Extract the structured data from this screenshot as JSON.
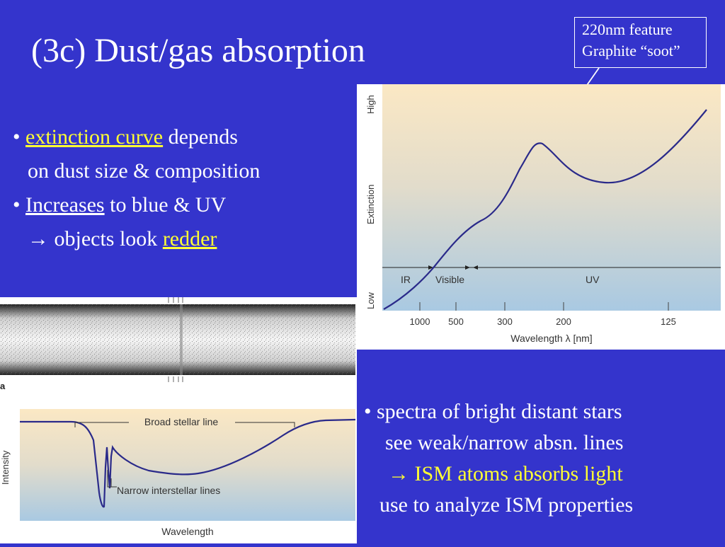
{
  "slide": {
    "title": "(3c)  Dust/gas absorption",
    "callout": {
      "line1": "220nm feature",
      "line2": "Graphite “soot”"
    },
    "bullets_left": {
      "b1_bullet": "•",
      "b1_highlight": "extinction curve",
      "b1_rest": " depends",
      "b1_line2": "on dust size & composition",
      "b2_bullet": "•",
      "b2_underlined": "Increases",
      "b2_rest": " to blue & UV",
      "b3_arrow": "→",
      "b3_text": " objects look ",
      "b3_highlight": "redder"
    },
    "bullets_right": {
      "line1": "• spectra of bright distant stars",
      "line2": "see weak/narrow absn. lines",
      "line3_arrow": "→",
      "line3_text": " ISM atoms absorbs light",
      "line4": "use to analyze ISM properties"
    },
    "colors": {
      "background": "#3434cc",
      "highlight": "#ffff33",
      "curve": "#2a2a8a"
    }
  },
  "chart_data": [
    {
      "type": "line",
      "title": "",
      "xlabel": "Wavelength λ [nm]",
      "ylabel": "Extinction",
      "y_high_label": "High",
      "y_low_label": "Low",
      "x_ticks": [
        "1000",
        "500",
        "300",
        "200",
        "125"
      ],
      "regions": [
        "IR",
        "Visible",
        "UV"
      ],
      "note": "qualitative curve: extinction rises toward UV with a bump near 220 nm"
    },
    {
      "type": "line",
      "title": "",
      "xlabel": "Wavelength",
      "ylabel": "Intensity",
      "panel_label": "a",
      "annotations": [
        "Broad stellar line",
        "Narrow interstellar lines"
      ]
    }
  ]
}
